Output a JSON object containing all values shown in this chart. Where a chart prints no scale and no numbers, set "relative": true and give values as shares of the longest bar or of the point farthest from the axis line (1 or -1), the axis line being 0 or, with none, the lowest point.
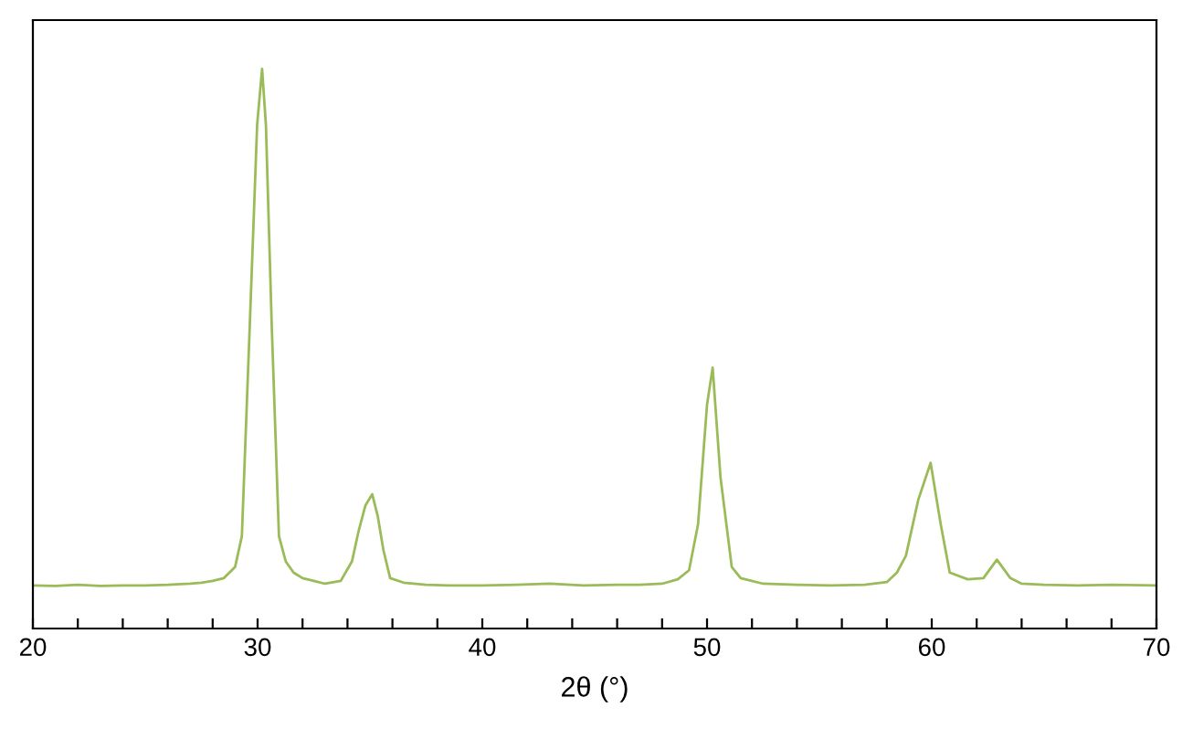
{
  "chart_data": {
    "type": "line",
    "xlabel": "2θ (°)",
    "relative": true,
    "tick_labels": "x",
    "grid": false,
    "marker": "none",
    "line_style": "solid",
    "xlim": [
      20,
      70
    ],
    "xticks": [
      20,
      {
        "value": 22,
        "label": null
      },
      {
        "value": 24,
        "label": null
      },
      {
        "value": 26,
        "label": null
      },
      {
        "value": 28,
        "label": null
      },
      30,
      {
        "value": 32,
        "label": null
      },
      {
        "value": 34,
        "label": null
      },
      {
        "value": 36,
        "label": null
      },
      {
        "value": 38,
        "label": null
      },
      40,
      {
        "value": 42,
        "label": null
      },
      {
        "value": 44,
        "label": null
      },
      {
        "value": 46,
        "label": null
      },
      {
        "value": 48,
        "label": null
      },
      50,
      {
        "value": 52,
        "label": null
      },
      {
        "value": 54,
        "label": null
      },
      {
        "value": 56,
        "label": null
      },
      {
        "value": 58,
        "label": null
      },
      60,
      {
        "value": 62,
        "label": null
      },
      {
        "value": 64,
        "label": null
      },
      {
        "value": 66,
        "label": null
      },
      {
        "value": 68,
        "label": null
      },
      70
    ],
    "series": [
      {
        "color": "#9bbb59",
        "x": [
          20,
          21,
          22,
          23,
          24,
          25,
          26,
          27,
          27.5,
          28,
          28.5,
          29,
          29.3,
          29.65,
          29.98,
          30.2,
          30.37,
          30.63,
          30.95,
          31.25,
          31.6,
          32,
          32.5,
          33,
          33.7,
          34.2,
          34.5,
          34.8,
          35.1,
          35.35,
          35.6,
          35.9,
          36.5,
          37.5,
          38.5,
          40,
          41.5,
          43,
          44.5,
          46,
          47,
          48,
          48.7,
          49.2,
          49.6,
          50.0,
          50.25,
          50.6,
          51.1,
          51.5,
          52.5,
          54,
          55.5,
          57,
          58,
          58.45,
          58.85,
          59.4,
          59.95,
          60.4,
          60.8,
          61.6,
          62.3,
          62.9,
          63.5,
          64,
          65,
          66.5,
          68,
          70
        ],
        "values": [
          0.077,
          0.076,
          0.078,
          0.076,
          0.077,
          0.077,
          0.078,
          0.08,
          0.082,
          0.085,
          0.09,
          0.11,
          0.165,
          0.54,
          0.9,
          1.0,
          0.9,
          0.54,
          0.165,
          0.12,
          0.1,
          0.09,
          0.085,
          0.08,
          0.085,
          0.12,
          0.175,
          0.22,
          0.24,
          0.2,
          0.14,
          0.09,
          0.082,
          0.078,
          0.077,
          0.077,
          0.078,
          0.08,
          0.077,
          0.078,
          0.078,
          0.08,
          0.088,
          0.104,
          0.186,
          0.4,
          0.466,
          0.27,
          0.11,
          0.09,
          0.08,
          0.078,
          0.077,
          0.078,
          0.083,
          0.1,
          0.13,
          0.23,
          0.296,
          0.186,
          0.1,
          0.088,
          0.09,
          0.123,
          0.09,
          0.08,
          0.078,
          0.077,
          0.078,
          0.077
        ]
      }
    ]
  }
}
